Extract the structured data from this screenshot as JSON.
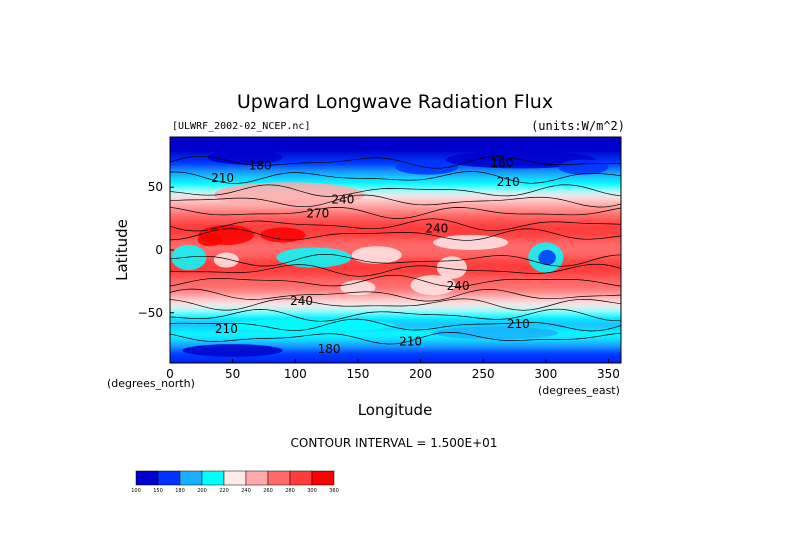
{
  "chart_data": {
    "type": "heatmap",
    "title": "Upward Longwave Radiation Flux",
    "file_label": "[ULWRF_2002-02_NCEP.nc]",
    "units_label": "(units:W/m^2)",
    "xlabel": "Longitude",
    "ylabel": "Latitude",
    "x_unit_label": "(degrees_east)",
    "y_unit_label": "(degrees_north)",
    "xlim": [
      0,
      360
    ],
    "ylim": [
      -90,
      90
    ],
    "x_ticks": [
      "0",
      "50",
      "100",
      "150",
      "200",
      "250",
      "300",
      "350"
    ],
    "x_tick_values": [
      0,
      50,
      100,
      150,
      200,
      250,
      300,
      350
    ],
    "y_ticks": [
      "50",
      "0",
      "−50"
    ],
    "y_tick_values": [
      50,
      0,
      -50
    ],
    "contour_interval_text": "CONTOUR INTERVAL = 1.500E+01",
    "colorbar_levels": [
      "100",
      "150",
      "180",
      "200",
      "220",
      "240",
      "260",
      "280",
      "300",
      "360"
    ],
    "colorbar_colors": [
      "#0000cc",
      "#0033ff",
      "#1ab0ff",
      "#00ffff",
      "#ffe9e9",
      "#ffaaaa",
      "#ff6a6a",
      "#ff3c3c",
      "#ff0000"
    ],
    "contour_labels": [
      {
        "text": "180",
        "lon": 72,
        "lat": 64
      },
      {
        "text": "210",
        "lon": 42,
        "lat": 54
      },
      {
        "text": "240",
        "lon": 138,
        "lat": 37
      },
      {
        "text": "270",
        "lon": 118,
        "lat": 26
      },
      {
        "text": "240",
        "lon": 213,
        "lat": 14
      },
      {
        "text": "180",
        "lon": 265,
        "lat": 66
      },
      {
        "text": "210",
        "lon": 270,
        "lat": 51
      },
      {
        "text": "240",
        "lon": 105,
        "lat": -44
      },
      {
        "text": "240",
        "lon": 230,
        "lat": -32
      },
      {
        "text": "210",
        "lon": 45,
        "lat": -66
      },
      {
        "text": "210",
        "lon": 278,
        "lat": -62
      },
      {
        "text": "210",
        "lon": 192,
        "lat": -76
      },
      {
        "text": "180",
        "lon": 127,
        "lat": -82
      }
    ]
  }
}
